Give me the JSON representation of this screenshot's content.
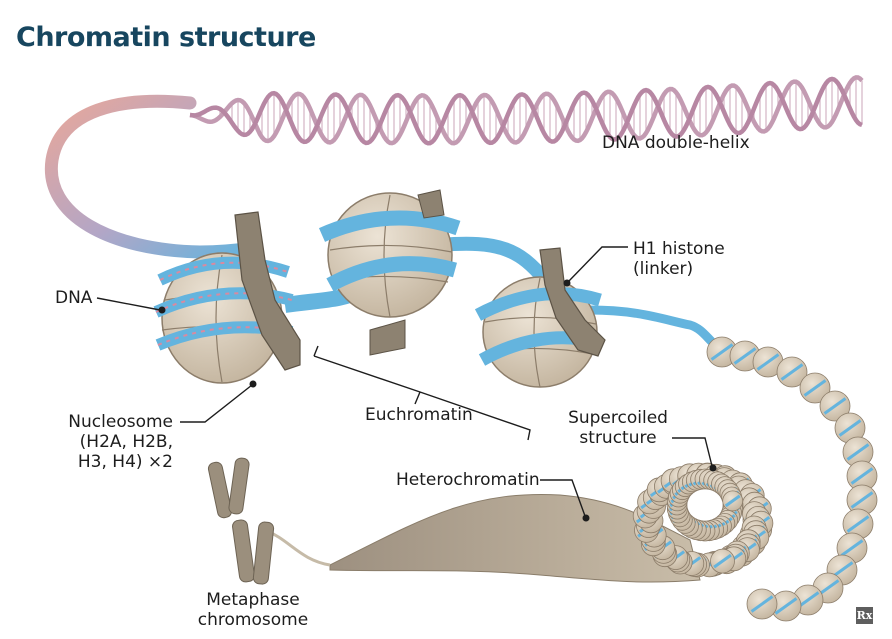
{
  "title": "Chromatin structure",
  "labels": {
    "dna_double_helix": "DNA double-helix",
    "dna": "DNA",
    "h1_histone": [
      "H1 histone",
      "(linker)"
    ],
    "nucleosome": [
      "Nucleosome",
      "(H2A, H2B,",
      "H3, H4) ×2"
    ],
    "euchromatin": "Euchromatin",
    "supercoiled": [
      "Supercoiled",
      "structure"
    ],
    "heterochromatin": "Heterochromatin",
    "metaphase": [
      "Metaphase",
      "chromosome"
    ]
  },
  "logo": "Rx",
  "colors": {
    "title": "#17465f",
    "dna_helix": "#c39bb2",
    "dna_pink": "#e8a79a",
    "dna_blue": "#64b4de",
    "histone": "#d9ccb8",
    "histone_line": "#8c7d6a",
    "h1": "#8d8271",
    "chromatin_dark": "#a59885",
    "leader": "#1d1d1d"
  }
}
